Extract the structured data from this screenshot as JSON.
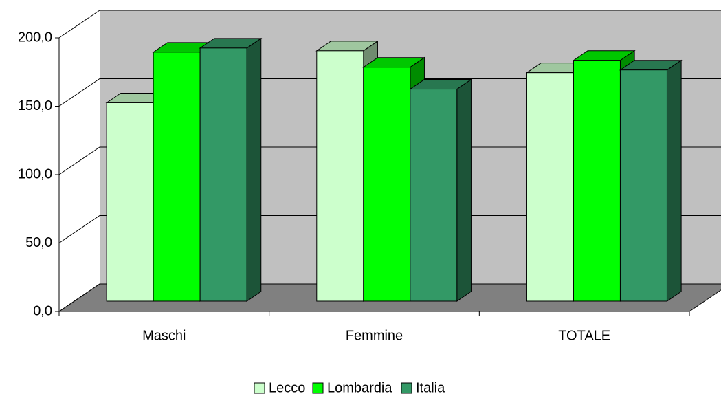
{
  "chart_data": {
    "type": "bar3d",
    "categories": [
      "Maschi",
      "Femmine",
      "TOTALE"
    ],
    "series": [
      {
        "name": "Lecco",
        "color": "#ccffcc",
        "values": [
          145,
          183,
          167
        ]
      },
      {
        "name": "Lombardia",
        "color": "#00ff00",
        "values": [
          182,
          171,
          176
        ]
      },
      {
        "name": "Italia",
        "color": "#339966",
        "values": [
          185,
          155,
          169
        ]
      }
    ],
    "ylim": [
      0,
      200
    ],
    "yticks": [
      {
        "value": 0,
        "label": "0,0"
      },
      {
        "value": 50,
        "label": "50,0"
      },
      {
        "value": 100,
        "label": "100,0"
      },
      {
        "value": 150,
        "label": "150,0"
      },
      {
        "value": 200,
        "label": "200,0"
      }
    ],
    "grid": true,
    "legend": "bottom"
  }
}
